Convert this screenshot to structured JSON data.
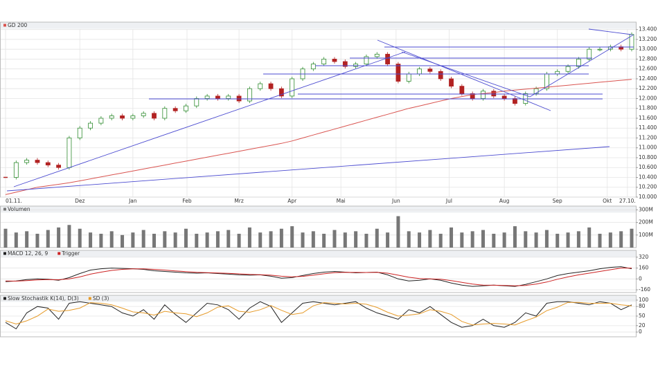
{
  "chart_data": [
    {
      "type": "candlestick",
      "xlim": [
        0,
        59
      ],
      "xticks": [
        {
          "value": 0,
          "label": "01.11."
        },
        {
          "value": 7,
          "label": "Dez"
        },
        {
          "value": 12,
          "label": "Jan"
        },
        {
          "value": 17.1,
          "label": "Feb"
        },
        {
          "value": 22,
          "label": "Mrz"
        },
        {
          "value": 27,
          "label": "Apr"
        },
        {
          "value": 31.6,
          "label": "Mai"
        },
        {
          "value": 36.8,
          "label": "Jun"
        },
        {
          "value": 41.8,
          "label": "Jul"
        },
        {
          "value": 47,
          "label": "Aug"
        },
        {
          "value": 52,
          "label": "Sep"
        },
        {
          "value": 56.7,
          "label": "Okt"
        },
        {
          "value": 58.6,
          "label": "27.10."
        }
      ],
      "ylim": [
        10000,
        13550
      ],
      "yticks": [
        {
          "value": 13400,
          "label": "13.400"
        },
        {
          "value": 13200,
          "label": "13.200"
        },
        {
          "value": 13000,
          "label": "13.000"
        },
        {
          "value": 12800,
          "label": "12.800"
        },
        {
          "value": 12600,
          "label": "12.600"
        },
        {
          "value": 12400,
          "label": "12.400"
        },
        {
          "value": 12200,
          "label": "12.200"
        },
        {
          "value": 12000,
          "label": "12.000"
        },
        {
          "value": 11800,
          "label": "11.800"
        },
        {
          "value": 11600,
          "label": "11.600"
        },
        {
          "value": 11400,
          "label": "11.400"
        },
        {
          "value": 11200,
          "label": "11.200"
        },
        {
          "value": 11000,
          "label": "11.000"
        },
        {
          "value": 10800,
          "label": "10.800"
        },
        {
          "value": 10600,
          "label": "10.600"
        },
        {
          "value": 10400,
          "label": "10.400"
        },
        {
          "value": 10200,
          "label": "10.200"
        },
        {
          "value": 10000,
          "label": "10.000"
        }
      ],
      "up_color": "#2e8b2e",
      "down_color": "#b22222",
      "series": [
        {
          "values": [
            10400,
            10700,
            10750,
            10700,
            10650,
            10600,
            11200,
            11400,
            11500,
            11600,
            11650,
            11600,
            11650,
            11700,
            11600,
            11800,
            11750,
            11850,
            12000,
            12050,
            12000,
            12050,
            11950,
            12200,
            12300,
            12200,
            12050,
            12400,
            12600,
            12700,
            12800,
            12750,
            12650,
            12700,
            12850,
            12900,
            12700,
            12350,
            12500,
            12600,
            12550,
            12400,
            12250,
            12100,
            12000,
            12150,
            12050,
            12000,
            11900,
            12100,
            12200,
            12500,
            12550,
            12650,
            12800,
            13000,
            13000,
            13050,
            13000,
            13300
          ]
        },
        {
          "name": "GD 200",
          "color": "#d9534f",
          "values": [
            10050,
            10100,
            10150,
            10200,
            10230,
            10260,
            10290,
            10330,
            10370,
            10410,
            10450,
            10490,
            10530,
            10570,
            10610,
            10650,
            10690,
            10730,
            10770,
            10810,
            10850,
            10890,
            10930,
            10970,
            11010,
            11050,
            11090,
            11140,
            11200,
            11260,
            11320,
            11380,
            11440,
            11500,
            11560,
            11620,
            11680,
            11740,
            11800,
            11850,
            11900,
            11950,
            12000,
            12040,
            12080,
            12100,
            12120,
            12150,
            12170,
            12190,
            12210,
            12230,
            12250,
            12270,
            12290,
            12310,
            12330,
            12350,
            12370,
            12390
          ]
        }
      ]
    },
    {
      "type": "bar",
      "ylim": [
        0,
        330
      ],
      "yticks": [
        {
          "value": 300,
          "label": "300M"
        },
        {
          "value": 200,
          "label": "200M"
        },
        {
          "value": 100,
          "label": "100M"
        }
      ],
      "series": [
        {
          "name": "Volumen",
          "color": "#777777",
          "values": [
            150,
            120,
            130,
            110,
            140,
            160,
            180,
            150,
            120,
            110,
            130,
            100,
            120,
            140,
            110,
            130,
            120,
            150,
            110,
            120,
            130,
            140,
            110,
            160,
            120,
            130,
            150,
            170,
            120,
            130,
            110,
            140,
            120,
            130,
            110,
            150,
            120,
            250,
            130,
            120,
            140,
            110,
            160,
            120,
            130,
            140,
            110,
            120,
            170,
            130,
            120,
            140,
            110,
            120,
            130,
            160,
            110,
            120,
            130,
            150
          ]
        }
      ]
    },
    {
      "type": "line",
      "ylim": [
        -200,
        420
      ],
      "yticks": [
        320,
        160,
        0,
        -160
      ],
      "series": [
        {
          "name": "MACD 12, 26, 9",
          "color": "#222222",
          "values": [
            -40,
            -30,
            -10,
            0,
            -5,
            -20,
            20,
            80,
            130,
            150,
            160,
            155,
            150,
            140,
            120,
            110,
            100,
            90,
            85,
            90,
            80,
            70,
            60,
            55,
            60,
            40,
            10,
            20,
            50,
            80,
            100,
            110,
            100,
            90,
            95,
            100,
            60,
            0,
            -30,
            -20,
            0,
            -20,
            -60,
            -90,
            -110,
            -100,
            -90,
            -100,
            -110,
            -80,
            -40,
            0,
            50,
            80,
            100,
            120,
            150,
            170,
            180,
            150
          ]
        },
        {
          "name": "Trigger",
          "color": "#cc2222",
          "values": [
            -30,
            -32,
            -25,
            -15,
            -10,
            -12,
            0,
            30,
            70,
            100,
            125,
            140,
            148,
            148,
            140,
            130,
            118,
            108,
            98,
            93,
            88,
            82,
            74,
            66,
            62,
            55,
            40,
            32,
            38,
            55,
            75,
            92,
            98,
            96,
            95,
            97,
            85,
            55,
            25,
            5,
            0,
            -5,
            -25,
            -50,
            -75,
            -90,
            -92,
            -95,
            -100,
            -95,
            -75,
            -45,
            -5,
            30,
            60,
            85,
            110,
            135,
            160,
            160
          ]
        }
      ]
    },
    {
      "type": "line",
      "ylim": [
        -15,
        115
      ],
      "yticks": [
        100,
        80,
        50,
        20,
        0
      ],
      "series": [
        {
          "name": "Slow Stochastik K(14), D(3)",
          "color": "#222222",
          "values": [
            30,
            10,
            60,
            80,
            75,
            40,
            90,
            95,
            90,
            85,
            80,
            60,
            50,
            70,
            40,
            85,
            55,
            30,
            60,
            90,
            85,
            70,
            40,
            75,
            95,
            80,
            30,
            60,
            90,
            95,
            90,
            85,
            90,
            95,
            75,
            60,
            50,
            40,
            70,
            60,
            80,
            55,
            30,
            15,
            20,
            40,
            20,
            15,
            30,
            60,
            50,
            90,
            95,
            95,
            90,
            85,
            95,
            90,
            70,
            85
          ]
        },
        {
          "name": "SD (3)",
          "color": "#e69a28",
          "values": [
            35,
            25,
            35,
            50,
            72,
            65,
            68,
            75,
            92,
            90,
            85,
            75,
            63,
            60,
            53,
            65,
            60,
            57,
            48,
            60,
            78,
            82,
            65,
            62,
            70,
            83,
            68,
            55,
            60,
            82,
            92,
            90,
            88,
            90,
            87,
            77,
            62,
            50,
            53,
            57,
            70,
            65,
            55,
            33,
            22,
            25,
            27,
            25,
            22,
            35,
            47,
            67,
            78,
            93,
            93,
            90,
            90,
            90,
            85,
            82
          ]
        }
      ]
    }
  ]
}
